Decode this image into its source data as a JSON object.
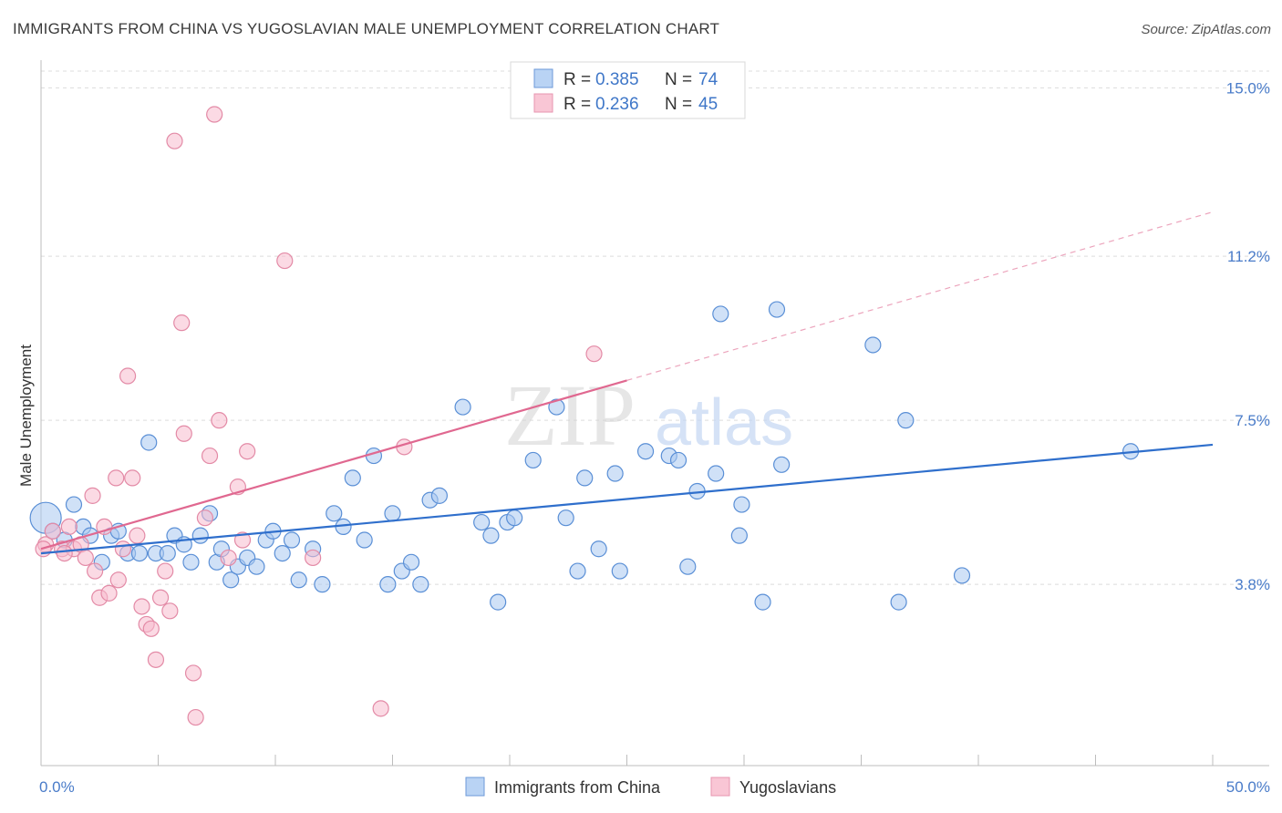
{
  "header": {
    "title": "IMMIGRANTS FROM CHINA VS YUGOSLAVIAN MALE UNEMPLOYMENT CORRELATION CHART",
    "source": "Source: ZipAtlas.com"
  },
  "watermark": {
    "zip": "ZIP",
    "atlas": "atlas"
  },
  "legend": {
    "entries": [
      {
        "r_label": "R =",
        "r_value": "0.385",
        "n_label": "N =",
        "n_value": "74"
      },
      {
        "r_label": "R =",
        "r_value": "0.236",
        "n_label": "N =",
        "n_value": "45"
      }
    ]
  },
  "bottom_legend": {
    "china": "Immigrants from China",
    "yugo": "Yugoslavians"
  },
  "chart_data": {
    "type": "scatter",
    "title": "IMMIGRANTS FROM CHINA VS YUGOSLAVIAN MALE UNEMPLOYMENT CORRELATION CHART",
    "xlabel": "",
    "ylabel": "Male Unemployment",
    "xlim": [
      0,
      50
    ],
    "ylim": [
      0,
      15.5
    ],
    "x_tick_labels": [
      "0.0%",
      "50.0%"
    ],
    "y_ticks": [
      {
        "value": 3.8,
        "label": "3.8%"
      },
      {
        "value": 7.5,
        "label": "7.5%"
      },
      {
        "value": 11.2,
        "label": "11.2%"
      },
      {
        "value": 15.0,
        "label": "15.0%"
      }
    ],
    "grid": "horizontal dashed",
    "legend_position": "top-center",
    "colors": {
      "china_fill": "#aac8f0",
      "china_stroke": "#5a8fd6",
      "china_line": "#2f6fcc",
      "yugo_fill": "#f7bccd",
      "yugo_stroke": "#e38aa6",
      "yugo_line": "#e06890"
    },
    "series": [
      {
        "name": "Immigrants from China",
        "trend": {
          "x": [
            0,
            50
          ],
          "y": [
            4.5,
            6.95
          ]
        },
        "points": [
          [
            0.2,
            5.3
          ],
          [
            0.5,
            5.0
          ],
          [
            1.0,
            4.8
          ],
          [
            1.4,
            5.6
          ],
          [
            1.8,
            5.1
          ],
          [
            2.1,
            4.9
          ],
          [
            2.6,
            4.3
          ],
          [
            3.0,
            4.9
          ],
          [
            3.3,
            5.0
          ],
          [
            3.7,
            4.5
          ],
          [
            4.2,
            4.5
          ],
          [
            4.6,
            7.0
          ],
          [
            4.9,
            4.5
          ],
          [
            5.4,
            4.5
          ],
          [
            5.7,
            4.9
          ],
          [
            6.1,
            4.7
          ],
          [
            6.4,
            4.3
          ],
          [
            6.8,
            4.9
          ],
          [
            7.2,
            5.4
          ],
          [
            7.5,
            4.3
          ],
          [
            7.7,
            4.6
          ],
          [
            8.1,
            3.9
          ],
          [
            8.4,
            4.2
          ],
          [
            8.8,
            4.4
          ],
          [
            9.2,
            4.2
          ],
          [
            9.6,
            4.8
          ],
          [
            9.9,
            5.0
          ],
          [
            10.3,
            4.5
          ],
          [
            10.7,
            4.8
          ],
          [
            11.0,
            3.9
          ],
          [
            11.6,
            4.6
          ],
          [
            12.0,
            3.8
          ],
          [
            12.5,
            5.4
          ],
          [
            12.9,
            5.1
          ],
          [
            13.3,
            6.2
          ],
          [
            13.8,
            4.8
          ],
          [
            14.2,
            6.7
          ],
          [
            14.8,
            3.8
          ],
          [
            15.0,
            5.4
          ],
          [
            15.4,
            4.1
          ],
          [
            15.8,
            4.3
          ],
          [
            16.2,
            3.8
          ],
          [
            16.6,
            5.7
          ],
          [
            17.0,
            5.8
          ],
          [
            18.0,
            7.8
          ],
          [
            18.8,
            5.2
          ],
          [
            19.2,
            4.9
          ],
          [
            19.5,
            3.4
          ],
          [
            19.9,
            5.2
          ],
          [
            20.2,
            5.3
          ],
          [
            21.0,
            6.6
          ],
          [
            22.0,
            7.8
          ],
          [
            22.4,
            5.3
          ],
          [
            22.9,
            4.1
          ],
          [
            23.2,
            6.2
          ],
          [
            23.8,
            4.6
          ],
          [
            24.5,
            6.3
          ],
          [
            24.7,
            4.1
          ],
          [
            25.8,
            6.8
          ],
          [
            26.8,
            6.7
          ],
          [
            27.2,
            6.6
          ],
          [
            27.6,
            4.2
          ],
          [
            28.0,
            5.9
          ],
          [
            28.8,
            6.3
          ],
          [
            29.0,
            9.9
          ],
          [
            29.9,
            5.6
          ],
          [
            29.8,
            4.9
          ],
          [
            30.8,
            3.4
          ],
          [
            31.4,
            10.0
          ],
          [
            31.6,
            6.5
          ],
          [
            35.5,
            9.2
          ],
          [
            36.6,
            3.4
          ],
          [
            36.9,
            7.5
          ],
          [
            39.3,
            4.0
          ],
          [
            46.5,
            6.8
          ]
        ]
      },
      {
        "name": "Yugoslavians",
        "trend": {
          "x": [
            0,
            25
          ],
          "y": [
            4.6,
            8.4
          ]
        },
        "trend_extension": {
          "x": [
            25,
            50
          ],
          "y": [
            8.4,
            12.2
          ]
        },
        "points": [
          [
            0.2,
            4.7
          ],
          [
            0.5,
            5.0
          ],
          [
            0.9,
            4.6
          ],
          [
            1.2,
            5.1
          ],
          [
            1.4,
            4.6
          ],
          [
            1.7,
            4.7
          ],
          [
            1.9,
            4.4
          ],
          [
            2.2,
            5.8
          ],
          [
            2.3,
            4.1
          ],
          [
            2.5,
            3.5
          ],
          [
            2.7,
            5.1
          ],
          [
            2.9,
            3.6
          ],
          [
            3.2,
            6.2
          ],
          [
            3.3,
            3.9
          ],
          [
            3.5,
            4.6
          ],
          [
            3.7,
            8.5
          ],
          [
            3.9,
            6.2
          ],
          [
            4.1,
            4.9
          ],
          [
            4.3,
            3.3
          ],
          [
            4.5,
            2.9
          ],
          [
            4.7,
            2.8
          ],
          [
            4.9,
            2.1
          ],
          [
            5.1,
            3.5
          ],
          [
            5.3,
            4.1
          ],
          [
            5.5,
            3.2
          ],
          [
            5.7,
            13.8
          ],
          [
            6.0,
            9.7
          ],
          [
            6.1,
            7.2
          ],
          [
            6.5,
            1.8
          ],
          [
            6.6,
            0.8
          ],
          [
            7.0,
            5.3
          ],
          [
            7.2,
            6.7
          ],
          [
            7.4,
            14.4
          ],
          [
            7.6,
            7.5
          ],
          [
            8.0,
            4.4
          ],
          [
            8.4,
            6.0
          ],
          [
            8.6,
            4.8
          ],
          [
            8.8,
            6.8
          ],
          [
            10.4,
            11.1
          ],
          [
            11.6,
            4.4
          ],
          [
            14.5,
            1.0
          ],
          [
            15.5,
            6.9
          ],
          [
            23.6,
            9.0
          ],
          [
            0.1,
            4.6
          ],
          [
            1.0,
            4.5
          ]
        ]
      }
    ]
  }
}
